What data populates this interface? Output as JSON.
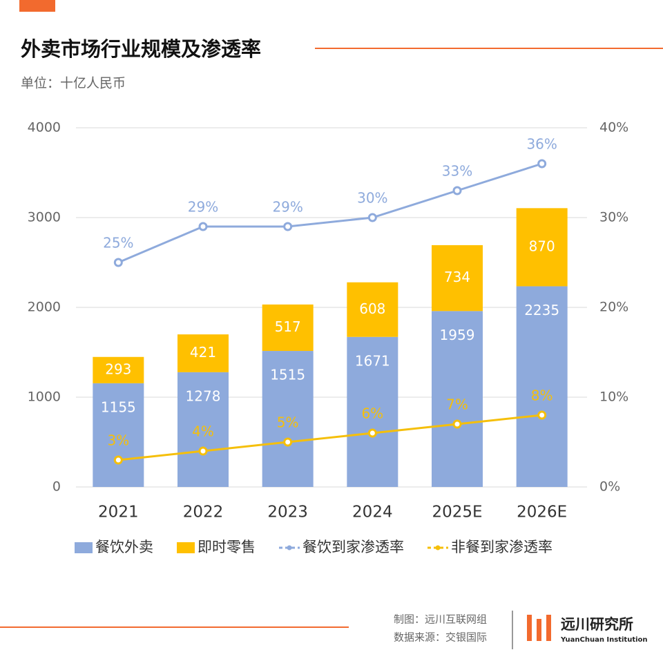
{
  "chart_data": {
    "type": "stacked-bar-line",
    "title": "外卖市场行业规模及渗透率",
    "subtitle": "单位：十亿人民币",
    "categories": [
      "2021",
      "2022",
      "2023",
      "2024",
      "2025E",
      "2026E"
    ],
    "ylim": [
      0,
      4000
    ],
    "yticks": [
      0,
      1000,
      2000,
      3000,
      4000
    ],
    "y2lim": [
      0,
      40
    ],
    "y2ticks": [
      {
        "value": 0,
        "label": "0%"
      },
      {
        "value": 10,
        "label": "10%"
      },
      {
        "value": 20,
        "label": "20%"
      },
      {
        "value": 30,
        "label": "30%"
      },
      {
        "value": 40,
        "label": "40%"
      }
    ],
    "grid": true,
    "legend": "bottom",
    "series": [
      {
        "name": "餐饮外卖",
        "type": "bar",
        "color": "#8eaadc",
        "values": [
          1155,
          1278,
          1515,
          1671,
          1959,
          2235
        ]
      },
      {
        "name": "即时零售",
        "type": "bar",
        "color": "#ffc000",
        "values": [
          293,
          421,
          517,
          608,
          734,
          870
        ]
      },
      {
        "name": "餐饮到家渗透率",
        "type": "line",
        "axis": "y2",
        "color": "#8eaadc",
        "values": [
          25,
          29,
          29,
          30,
          33,
          36
        ],
        "value_labels": [
          "25%",
          "29%",
          "29%",
          "30%",
          "33%",
          "36%"
        ]
      },
      {
        "name": "非餐到家渗透率",
        "type": "line",
        "axis": "y2",
        "color": "#f5bf0a",
        "values": [
          3,
          4,
          5,
          6,
          7,
          8
        ],
        "value_labels": [
          "3%",
          "4%",
          "5%",
          "6%",
          "7%",
          "8%"
        ]
      }
    ]
  },
  "footer": {
    "credit": "制图：远川互联网组",
    "source": "数据来源：交银国际",
    "brand": "远川研究所",
    "brand_en": "YuanChuan Institution"
  }
}
